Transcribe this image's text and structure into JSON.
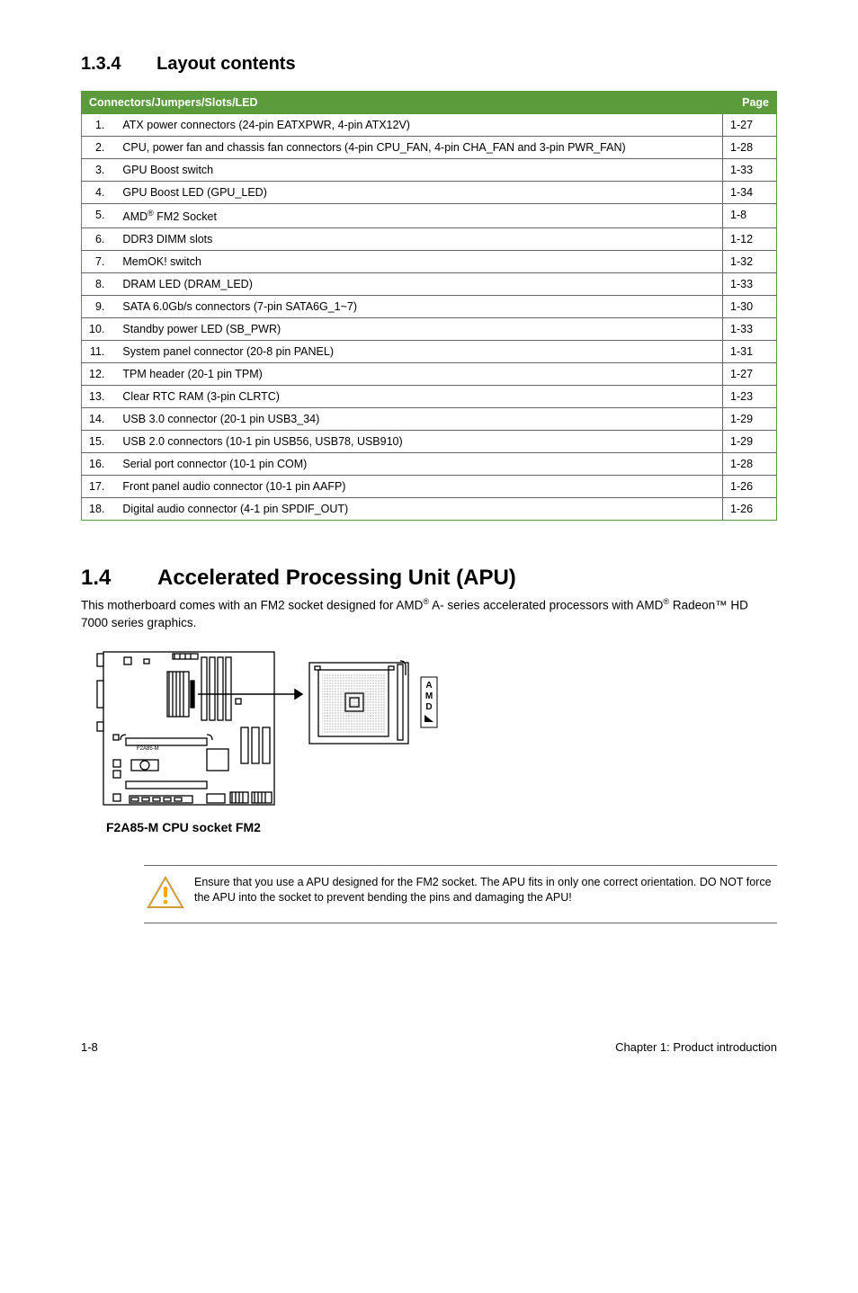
{
  "sections": {
    "layout": {
      "num": "1.3.4",
      "title": "Layout contents"
    },
    "apu": {
      "num": "1.4",
      "title": "Accelerated Processing Unit (APU)"
    }
  },
  "table": {
    "header_left": "Connectors/Jumpers/Slots/LED",
    "header_right": "Page",
    "header_bg": "#5b9b3c",
    "header_fg": "#ffffff",
    "rows": [
      {
        "n": "1.",
        "desc": "ATX power connectors (24-pin EATXPWR, 4-pin ATX12V)",
        "page": "1-27"
      },
      {
        "n": "2.",
        "desc": "CPU, power fan and  chassis fan connectors (4-pin CPU_FAN, 4-pin CHA_FAN and 3-pin PWR_FAN)",
        "page": "1-28"
      },
      {
        "n": "3.",
        "desc": "GPU Boost switch",
        "page": "1-33"
      },
      {
        "n": "4.",
        "desc": "GPU Boost LED (GPU_LED)",
        "page": "1-34"
      },
      {
        "n": "5.",
        "desc": "AMD® FM2 Socket",
        "page": "1-8"
      },
      {
        "n": "6.",
        "desc": "DDR3 DIMM slots",
        "page": "1-12"
      },
      {
        "n": "7.",
        "desc": "MemOK! switch",
        "page": "1-32"
      },
      {
        "n": "8.",
        "desc": "DRAM LED (DRAM_LED)",
        "page": "1-33"
      },
      {
        "n": "9.",
        "desc": "SATA 6.0Gb/s connectors (7-pin SATA6G_1~7)",
        "page": "1-30"
      },
      {
        "n": "10.",
        "desc": "Standby power LED (SB_PWR)",
        "page": "1-33"
      },
      {
        "n": "11.",
        "desc": "System panel connector (20-8 pin PANEL)",
        "page": "1-31"
      },
      {
        "n": "12.",
        "desc": "TPM header (20-1 pin TPM)",
        "page": "1-27"
      },
      {
        "n": "13.",
        "desc": "Clear RTC RAM (3-pin CLRTC)",
        "page": "1-23"
      },
      {
        "n": "14.",
        "desc": "USB 3.0 connector (20-1 pin USB3_34)",
        "page": "1-29"
      },
      {
        "n": "15.",
        "desc": "USB 2.0 connectors (10-1 pin USB56, USB78, USB910)",
        "page": "1-29"
      },
      {
        "n": "16.",
        "desc": "Serial port connector (10-1 pin COM)",
        "page": "1-28"
      },
      {
        "n": "17.",
        "desc": "Front panel audio connector (10-1 pin AAFP)",
        "page": "1-26"
      },
      {
        "n": "18.",
        "desc": "Digital audio connector (4-1 pin SPDIF_OUT)",
        "page": "1-26"
      }
    ]
  },
  "apu_desc_1a": "This motherboard comes with an FM2 socket designed for AMD",
  "apu_desc_1b": " A- series accelerated processors with AMD",
  "apu_desc_1c": " Radeon™ HD 7000 series graphics.",
  "sup_r": "®",
  "board_caption": "F2A85-M CPU socket FM2",
  "board_label_small": "F2A85-M",
  "amd_vertical": "AMD",
  "note_text": "Ensure that you use a APU designed for the FM2 socket. The APU fits in only one correct orientation. DO NOT force the APU into the socket to prevent bending the pins and damaging the APU!",
  "footer_left": "1-8",
  "footer_right": "Chapter 1: Product introduction",
  "colors": {
    "green": "#5b9b3c",
    "rule": "#666666",
    "caution_stroke": "#f7a600",
    "caution_fill": "#ffffff"
  }
}
